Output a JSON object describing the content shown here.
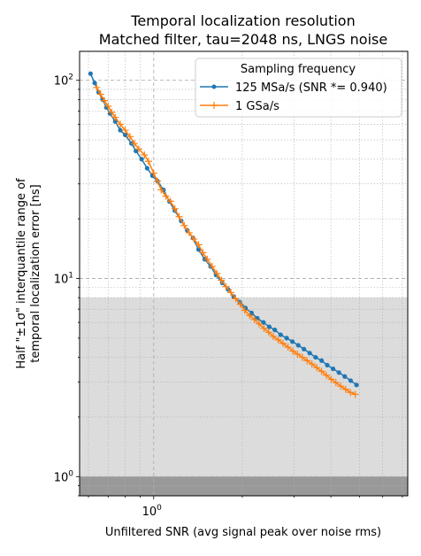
{
  "chart_data": {
    "type": "line",
    "title": "Temporal localization resolution",
    "subtitle": "Matched filter, tau=2048 ns, LNGS noise",
    "xlabel": "Unfiltered SNR (avg signal peak over noise rms)",
    "ylabel_line1": "Half \"±1σ\" interquantile range of",
    "ylabel_line2": "temporal localization error [ns]",
    "xscale": "log",
    "yscale": "log",
    "xlim": [
      0.56,
      7.3
    ],
    "ylim": [
      0.8,
      140
    ],
    "x_tick_labels": [
      {
        "value": 1,
        "base": "10",
        "exp": "0"
      }
    ],
    "y_tick_labels": [
      {
        "value": 1,
        "base": "10",
        "exp": "0"
      },
      {
        "value": 10,
        "base": "10",
        "exp": "1"
      },
      {
        "value": 100,
        "base": "10",
        "exp": "2"
      }
    ],
    "grid": true,
    "shaded_bands": [
      {
        "y_from": 0.8,
        "y_to": 8.0,
        "color": "#dcdcdc"
      },
      {
        "y_from": 0.8,
        "y_to": 1.0,
        "color": "#999999"
      }
    ],
    "legend": {
      "title": "Sampling frequency",
      "placement": "top-right"
    },
    "series": [
      {
        "name": "125 MSa/s (SNR *= 0.940)",
        "color": "#1f77b4",
        "marker": "dot",
        "points": [
          [
            0.61,
            108
          ],
          [
            0.63,
            97
          ],
          [
            0.65,
            87
          ],
          [
            0.67,
            80
          ],
          [
            0.69,
            73
          ],
          [
            0.71,
            68
          ],
          [
            0.74,
            62
          ],
          [
            0.77,
            56
          ],
          [
            0.8,
            53
          ],
          [
            0.84,
            48
          ],
          [
            0.87,
            44
          ],
          [
            0.91,
            40
          ],
          [
            0.95,
            36
          ],
          [
            0.99,
            33
          ],
          [
            1.03,
            31
          ],
          [
            1.08,
            28
          ],
          [
            1.13,
            24.5
          ],
          [
            1.18,
            22
          ],
          [
            1.24,
            19.5
          ],
          [
            1.3,
            17.5
          ],
          [
            1.36,
            16
          ],
          [
            1.42,
            14
          ],
          [
            1.49,
            12.5
          ],
          [
            1.56,
            11.5
          ],
          [
            1.63,
            10.4
          ],
          [
            1.71,
            9.5
          ],
          [
            1.79,
            8.8
          ],
          [
            1.87,
            8.1
          ],
          [
            1.96,
            7.6
          ],
          [
            2.05,
            7.1
          ],
          [
            2.15,
            6.7
          ],
          [
            2.25,
            6.3
          ],
          [
            2.36,
            6.0
          ],
          [
            2.47,
            5.7
          ],
          [
            2.58,
            5.5
          ],
          [
            2.7,
            5.2
          ],
          [
            2.83,
            5.0
          ],
          [
            2.96,
            4.8
          ],
          [
            3.1,
            4.6
          ],
          [
            3.24,
            4.4
          ],
          [
            3.39,
            4.2
          ],
          [
            3.55,
            4.0
          ],
          [
            3.72,
            3.85
          ],
          [
            3.89,
            3.65
          ],
          [
            4.07,
            3.5
          ],
          [
            4.26,
            3.35
          ],
          [
            4.46,
            3.2
          ],
          [
            4.67,
            3.05
          ],
          [
            4.89,
            2.9
          ]
        ]
      },
      {
        "name": "1 GSa/s",
        "color": "#ff7f0e",
        "marker": "plus",
        "points": [
          [
            0.64,
            92
          ],
          [
            0.66,
            85
          ],
          [
            0.68,
            79
          ],
          [
            0.7,
            74
          ],
          [
            0.72,
            69
          ],
          [
            0.74,
            65
          ],
          [
            0.77,
            60
          ],
          [
            0.8,
            56
          ],
          [
            0.83,
            52
          ],
          [
            0.86,
            48
          ],
          [
            0.89,
            45
          ],
          [
            0.93,
            42
          ],
          [
            0.96,
            39
          ],
          [
            1.0,
            34
          ],
          [
            1.03,
            31
          ],
          [
            1.06,
            28
          ],
          [
            1.1,
            26
          ],
          [
            1.14,
            24.5
          ],
          [
            1.18,
            22.5
          ],
          [
            1.22,
            20.5
          ],
          [
            1.27,
            18.5
          ],
          [
            1.32,
            17
          ],
          [
            1.37,
            15.8
          ],
          [
            1.42,
            14.8
          ],
          [
            1.47,
            13.5
          ],
          [
            1.52,
            12.5
          ],
          [
            1.58,
            11.5
          ],
          [
            1.64,
            10.6
          ],
          [
            1.7,
            9.8
          ],
          [
            1.76,
            9.1
          ],
          [
            1.83,
            8.5
          ],
          [
            1.9,
            7.9
          ],
          [
            1.97,
            7.4
          ],
          [
            2.04,
            6.9
          ],
          [
            2.12,
            6.5
          ],
          [
            2.2,
            6.2
          ],
          [
            2.28,
            5.9
          ],
          [
            2.37,
            5.6
          ],
          [
            2.46,
            5.35
          ],
          [
            2.55,
            5.1
          ],
          [
            2.65,
            4.9
          ],
          [
            2.75,
            4.7
          ],
          [
            2.86,
            4.5
          ],
          [
            2.97,
            4.3
          ],
          [
            3.08,
            4.15
          ],
          [
            3.2,
            4.0
          ],
          [
            3.32,
            3.85
          ],
          [
            3.45,
            3.7
          ],
          [
            3.58,
            3.55
          ],
          [
            3.72,
            3.4
          ],
          [
            3.86,
            3.25
          ],
          [
            4.01,
            3.1
          ],
          [
            4.16,
            2.98
          ],
          [
            4.32,
            2.86
          ],
          [
            4.49,
            2.76
          ],
          [
            4.66,
            2.66
          ],
          [
            4.84,
            2.6
          ]
        ]
      }
    ]
  }
}
